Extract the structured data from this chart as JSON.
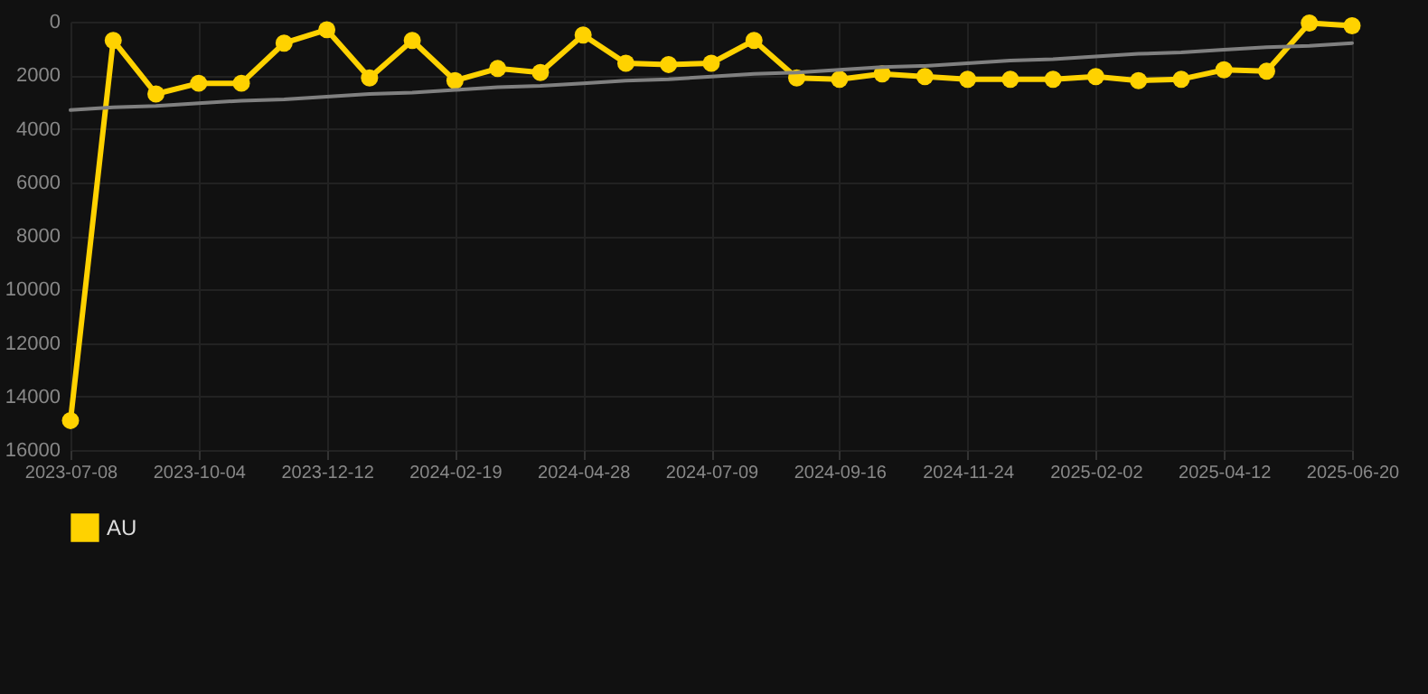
{
  "chart_data": {
    "type": "line",
    "categories": [
      "2023-07-08",
      null,
      null,
      "2023-10-04",
      null,
      null,
      "2023-12-12",
      null,
      null,
      "2024-02-19",
      null,
      null,
      "2024-04-28",
      null,
      null,
      "2024-07-09",
      null,
      null,
      "2024-09-16",
      null,
      null,
      "2024-11-24",
      null,
      null,
      "2025-02-02",
      null,
      null,
      "2025-04-12",
      null,
      null,
      "2025-06-20"
    ],
    "series": [
      {
        "name": "AU",
        "color": "#ffd200",
        "values": [
          14900,
          700,
          2700,
          2300,
          2300,
          800,
          300,
          2100,
          700,
          2200,
          1750,
          1900,
          500,
          1550,
          1600,
          1550,
          700,
          2100,
          2150,
          1950,
          2050,
          2150,
          2150,
          2150,
          2050,
          2200,
          2150,
          1800,
          1850,
          50,
          150
        ]
      },
      {
        "type": "line",
        "color": "#808080",
        "values": [
          3300,
          3200,
          3150,
          3050,
          2950,
          2900,
          2800,
          2700,
          2650,
          2550,
          2450,
          2400,
          2300,
          2200,
          2150,
          2050,
          1950,
          1900,
          1800,
          1700,
          1650,
          1550,
          1450,
          1400,
          1300,
          1200,
          1150,
          1050,
          950,
          900,
          800
        ],
        "marker": "none"
      }
    ],
    "ylim": [
      16000,
      0
    ],
    "yticks": [
      0,
      2000,
      4000,
      6000,
      8000,
      10000,
      12000,
      14000,
      16000
    ],
    "grid": true,
    "legend": "bottom",
    "marker": "circle"
  }
}
